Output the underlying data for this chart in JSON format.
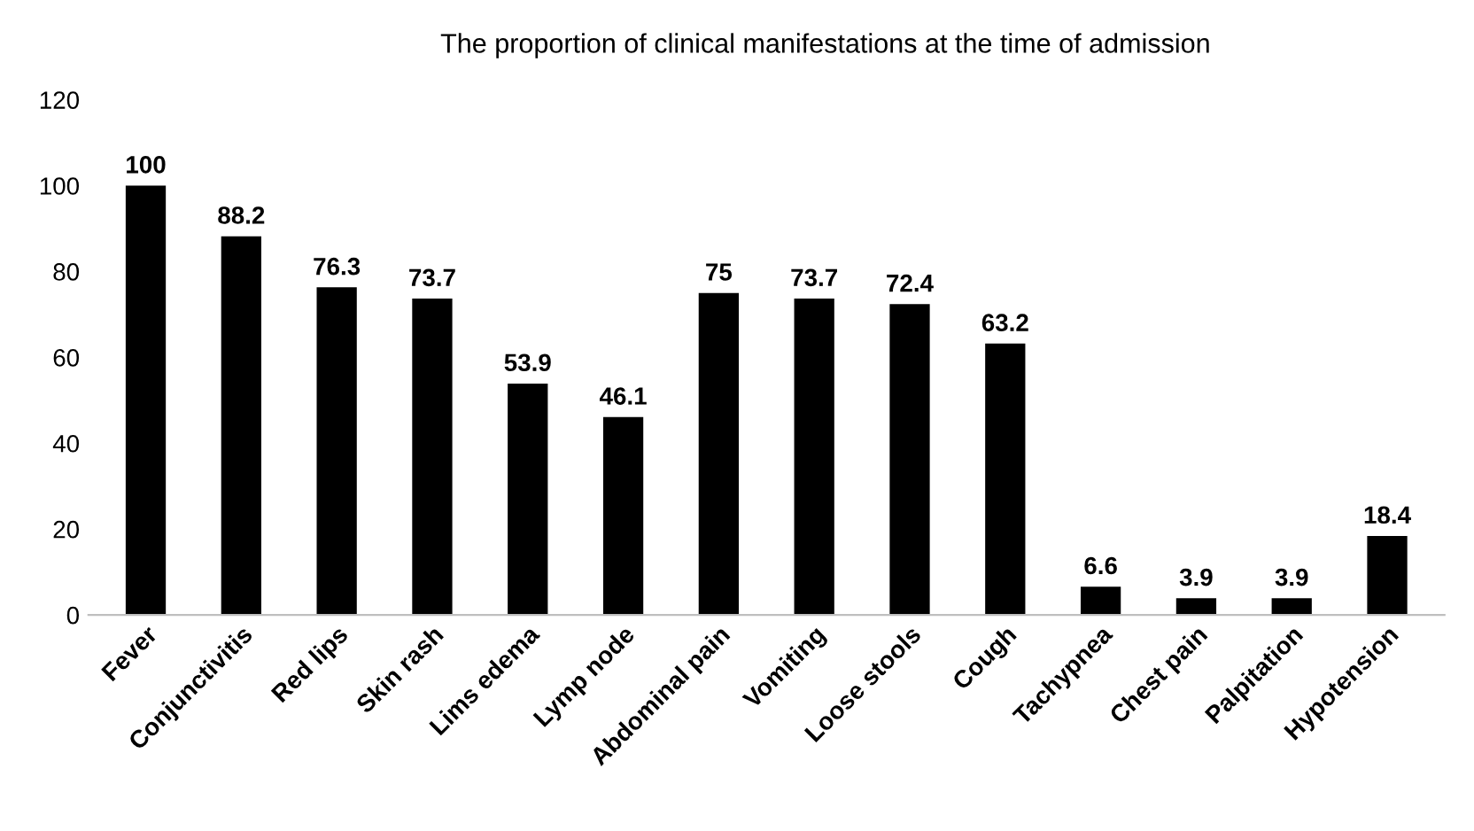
{
  "chart_data": {
    "type": "bar",
    "title": "The proportion of clinical manifestations at the time of admission",
    "categories": [
      "Fever",
      "Conjunctivitis",
      "Red lips",
      "Skin rash",
      "Lims edema",
      "Lymp node",
      "Abdominal pain",
      "Vomiting",
      "Loose stools",
      "Cough",
      "Tachypnea",
      "Chest pain",
      "Palpitation",
      "Hypotension"
    ],
    "values": [
      100,
      88.2,
      76.3,
      73.7,
      53.9,
      46.1,
      75,
      73.7,
      72.4,
      63.2,
      6.6,
      3.9,
      3.9,
      18.4
    ],
    "color": "#000000",
    "ylim": [
      0,
      120
    ],
    "yticks": [
      0,
      20,
      40,
      60,
      80,
      100,
      120
    ],
    "data_labels": true,
    "grid": false,
    "legend": false
  }
}
